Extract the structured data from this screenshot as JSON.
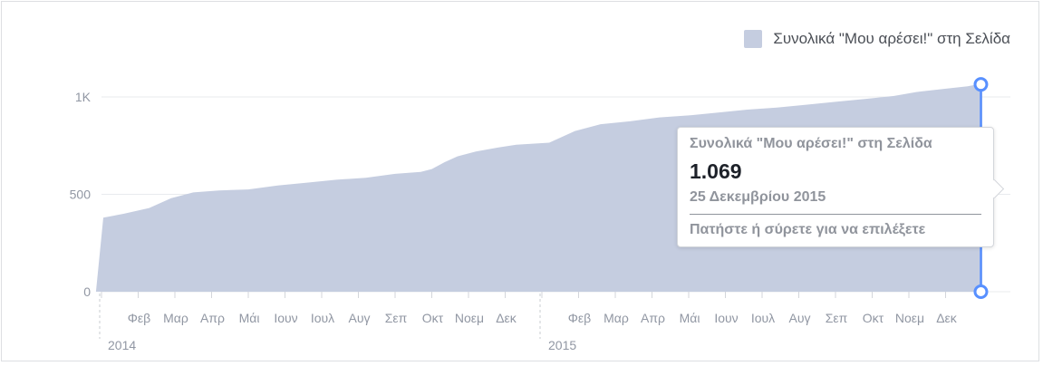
{
  "legend": {
    "label": "Συνολικά \"Μου αρέσει!\" στη Σελίδα",
    "color": "#c5cde0"
  },
  "tooltip": {
    "title": "Συνολικά \"Μου αρέσει!\" στη Σελίδα",
    "value": "1.069",
    "date": "25 Δεκεμβρίου 2015",
    "hint": "Πατήστε ή σύρετε για να επιλέξετε"
  },
  "colors": {
    "area": "#c5cde0",
    "cursor": "#5890ff",
    "grid": "#e9ebee",
    "axis_text": "#9197a3"
  },
  "chart_data": {
    "type": "area",
    "ylim": [
      0,
      1000
    ],
    "y_ticks": [
      {
        "value": 0,
        "label": "0"
      },
      {
        "value": 500,
        "label": "500"
      },
      {
        "value": 1000,
        "label": "1K"
      }
    ],
    "x_ticks": [
      {
        "month": 2,
        "label": "Φεβ"
      },
      {
        "month": 3,
        "label": "Μαρ"
      },
      {
        "month": 4,
        "label": "Απρ"
      },
      {
        "month": 5,
        "label": "Μάι"
      },
      {
        "month": 6,
        "label": "Ιουν"
      },
      {
        "month": 7,
        "label": "Ιουλ"
      },
      {
        "month": 8,
        "label": "Αυγ"
      },
      {
        "month": 9,
        "label": "Σεπ"
      },
      {
        "month": 10,
        "label": "Οκτ"
      },
      {
        "month": 11,
        "label": "Νοεμ"
      },
      {
        "month": 12,
        "label": "Δεκ"
      },
      {
        "month": 14,
        "label": "Φεβ"
      },
      {
        "month": 15,
        "label": "Μαρ"
      },
      {
        "month": 16,
        "label": "Απρ"
      },
      {
        "month": 17,
        "label": "Μάι"
      },
      {
        "month": 18,
        "label": "Ιουν"
      },
      {
        "month": 19,
        "label": "Ιουλ"
      },
      {
        "month": 20,
        "label": "Αυγ"
      },
      {
        "month": 21,
        "label": "Σεπ"
      },
      {
        "month": 22,
        "label": "Οκτ"
      },
      {
        "month": 23,
        "label": "Νοεμ"
      },
      {
        "month": 24,
        "label": "Δεκ"
      }
    ],
    "years": [
      {
        "month": 1,
        "label": "2014"
      },
      {
        "month": 13,
        "label": "2015"
      }
    ],
    "series": [
      {
        "name": "Συνολικά \"Μου αρέσει!\" στη Σελίδα",
        "x": [
          0.85,
          1.05,
          1.6,
          2.3,
          2.9,
          3.5,
          4.2,
          5.0,
          5.8,
          6.6,
          7.4,
          8.2,
          9.0,
          9.7,
          10.0,
          10.35,
          10.7,
          11.2,
          11.8,
          12.3,
          12.75,
          13.2,
          13.9,
          14.6,
          15.4,
          16.2,
          17.0,
          17.8,
          18.6,
          19.4,
          20.2,
          21.0,
          21.8,
          22.6,
          23.2,
          23.9,
          24.6,
          25.0
        ],
        "values": [
          0,
          380,
          400,
          430,
          480,
          510,
          520,
          525,
          545,
          560,
          575,
          585,
          605,
          615,
          630,
          665,
          695,
          720,
          740,
          755,
          760,
          765,
          825,
          860,
          875,
          895,
          905,
          920,
          935,
          945,
          960,
          975,
          990,
          1005,
          1025,
          1040,
          1055,
          1069
        ]
      }
    ],
    "cursor": {
      "month": 24.95,
      "value": 1069
    },
    "grid": true,
    "legend_position": "top-right"
  }
}
